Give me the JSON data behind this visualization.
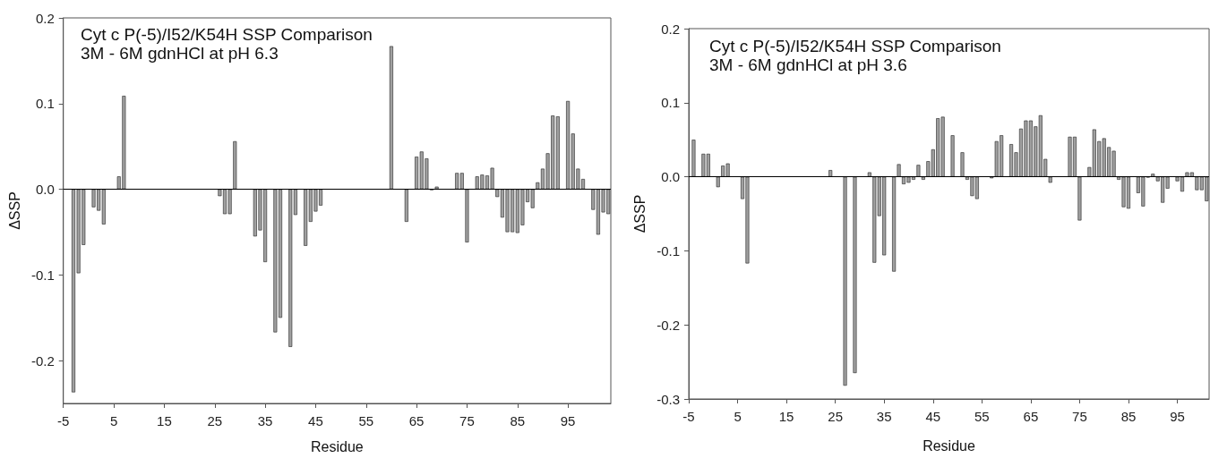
{
  "chart_data": [
    {
      "type": "bar",
      "title": "Cyt c P(-5)/I52/K54H SSP Comparison",
      "subtitle": "3M - 6M gdnHCl at pH 6.3",
      "xlabel": "Residue",
      "ylabel": "ΔSSP",
      "color": "#a0a0a0",
      "x": [
        -3,
        -2,
        -1,
        1,
        2,
        3,
        6,
        7,
        26,
        27,
        28,
        29,
        33,
        34,
        35,
        37,
        38,
        40,
        41,
        43,
        44,
        45,
        46,
        60,
        63,
        65,
        66,
        67,
        68,
        69,
        73,
        74,
        75,
        77,
        78,
        79,
        80,
        81,
        82,
        83,
        84,
        85,
        86,
        87,
        88,
        89,
        90,
        91,
        92,
        93,
        95,
        96,
        97,
        98,
        100,
        101,
        102,
        103
      ],
      "values": [
        -0.237,
        -0.098,
        -0.065,
        -0.021,
        -0.025,
        -0.041,
        0.015,
        0.109,
        -0.008,
        -0.029,
        -0.029,
        0.056,
        -0.055,
        -0.048,
        -0.085,
        -0.167,
        -0.15,
        -0.184,
        -0.03,
        -0.066,
        -0.038,
        -0.026,
        -0.019,
        0.167,
        -0.038,
        0.038,
        0.044,
        0.036,
        -0.001,
        0.003,
        0.019,
        0.019,
        -0.062,
        0.015,
        0.017,
        0.016,
        0.025,
        -0.009,
        -0.033,
        -0.05,
        -0.05,
        -0.051,
        -0.042,
        -0.015,
        -0.022,
        0.008,
        0.024,
        0.042,
        0.086,
        0.085,
        0.103,
        0.065,
        0.024,
        0.012,
        -0.024,
        -0.053,
        -0.027,
        -0.029
      ],
      "xlim": [
        -5,
        103.5
      ],
      "xticks": [
        -5,
        5,
        15,
        25,
        35,
        45,
        55,
        65,
        75,
        85,
        95
      ],
      "ylim": [
        -0.25,
        0.2
      ],
      "yticks": [
        -0.2,
        -0.1,
        {
          "value": 0,
          "label": "0.0"
        },
        0.1,
        0.2
      ],
      "ref_lines": [
        {
          "axis": "y",
          "value": 0,
          "color": "#000000"
        }
      ]
    },
    {
      "type": "bar",
      "title": "Cyt c P(-5)/I52/K54H SSP Comparison",
      "subtitle": "3M - 6M gdnHCl at pH 3.6",
      "xlabel": "Residue",
      "ylabel": "ΔSSP",
      "color": "#a0a0a0",
      "x": [
        -4,
        -2,
        -1,
        1,
        2,
        3,
        6,
        7,
        24,
        27,
        29,
        32,
        33,
        34,
        35,
        37,
        38,
        39,
        40,
        41,
        42,
        43,
        44,
        45,
        46,
        47,
        49,
        51,
        52,
        53,
        54,
        57,
        58,
        59,
        61,
        62,
        63,
        64,
        65,
        66,
        67,
        68,
        69,
        73,
        74,
        75,
        77,
        78,
        79,
        80,
        81,
        82,
        83,
        84,
        85,
        87,
        88,
        89,
        90,
        91,
        92,
        93,
        95,
        96,
        97,
        98,
        99,
        100,
        101
      ],
      "values": [
        0.05,
        0.031,
        0.031,
        -0.014,
        0.015,
        0.018,
        -0.03,
        -0.117,
        0.009,
        -0.282,
        -0.265,
        0.006,
        -0.116,
        -0.053,
        -0.106,
        -0.128,
        0.017,
        -0.01,
        -0.008,
        -0.004,
        0.016,
        -0.004,
        0.021,
        0.037,
        0.079,
        0.081,
        0.056,
        0.033,
        -0.004,
        -0.026,
        -0.03,
        -0.002,
        0.048,
        0.056,
        0.044,
        0.033,
        0.065,
        0.076,
        0.076,
        0.068,
        0.083,
        0.024,
        -0.008,
        0.054,
        0.054,
        -0.059,
        0.013,
        0.064,
        0.048,
        0.052,
        0.04,
        0.035,
        -0.004,
        -0.041,
        -0.043,
        -0.022,
        -0.04,
        -0.001,
        0.004,
        -0.006,
        -0.035,
        -0.016,
        -0.006,
        -0.02,
        0.006,
        0.006,
        -0.018,
        -0.018,
        -0.033
      ],
      "xlim": [
        -5,
        101.5
      ],
      "xticks": [
        -5,
        5,
        15,
        25,
        35,
        45,
        55,
        65,
        75,
        85,
        95
      ],
      "ylim": [
        -0.3,
        0.2
      ],
      "yticks": [
        -0.3,
        -0.2,
        -0.1,
        {
          "value": 0,
          "label": "0.0"
        },
        0.1,
        0.2
      ],
      "ref_lines": [
        {
          "axis": "y",
          "value": 0,
          "color": "#000000"
        }
      ]
    }
  ]
}
